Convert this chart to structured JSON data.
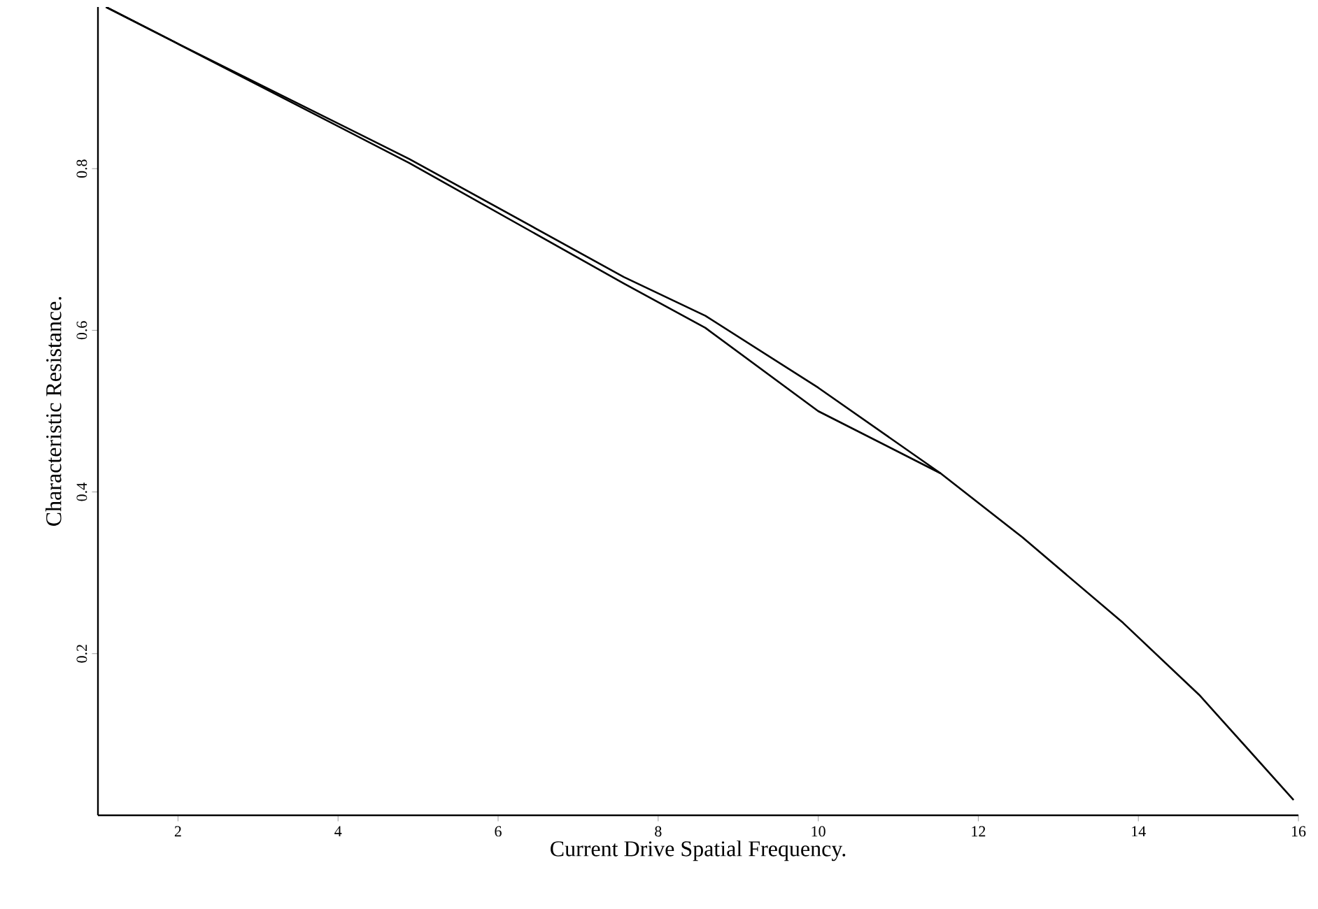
{
  "chart_data": {
    "type": "line",
    "xlabel": "Current Drive Spatial Frequency.",
    "ylabel": "Characteristic Resistance.",
    "xlim": [
      1,
      16
    ],
    "ylim": [
      0,
      1
    ],
    "xticks": [
      2,
      4,
      6,
      8,
      10,
      12,
      14,
      16
    ],
    "yticks": [
      0.2,
      0.4,
      0.6,
      0.8
    ],
    "series": [
      {
        "color": "#000000",
        "x": [
          1.1,
          1.95,
          4.89,
          7.57,
          8.59,
          10.0,
          11.53,
          12.55,
          13.81,
          14.76,
          15.94
        ],
        "values": [
          1.0,
          0.957,
          0.812,
          0.666,
          0.618,
          0.529,
          0.423,
          0.344,
          0.238,
          0.149,
          0.019
        ]
      },
      {
        "color": "#000000",
        "x": [
          1.1,
          1.95,
          4.89,
          7.57,
          8.59,
          10.0,
          11.53
        ],
        "values": [
          1.0,
          0.957,
          0.807,
          0.658,
          0.603,
          0.5,
          0.423
        ]
      }
    ],
    "grid": false,
    "marker": "none",
    "line_style": "solid"
  }
}
